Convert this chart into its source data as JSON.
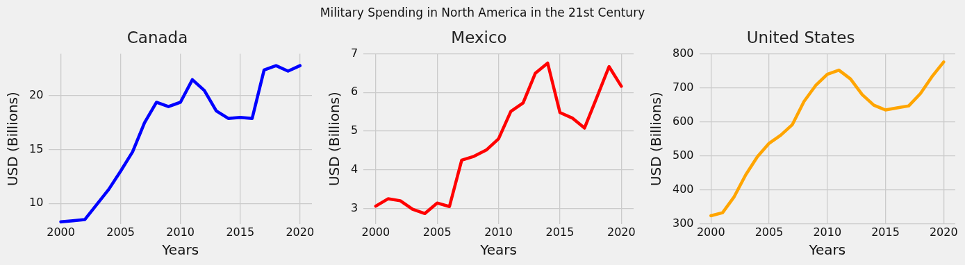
{
  "chart_data": [
    {
      "type": "line",
      "title": "Canada",
      "xlabel": "Years",
      "ylabel": "USD (Billions)",
      "annotations": [
        "Military Spending in North America in the 21st Century"
      ],
      "color": "#0000ff",
      "x": [
        2000,
        2001,
        2002,
        2003,
        2004,
        2005,
        2006,
        2007,
        2008,
        2009,
        2010,
        2011,
        2012,
        2013,
        2014,
        2015,
        2016,
        2017,
        2018,
        2019,
        2020
      ],
      "values": [
        8.3,
        8.4,
        8.5,
        9.9,
        11.3,
        13.0,
        14.8,
        17.5,
        19.4,
        19.0,
        19.4,
        21.5,
        20.5,
        18.6,
        17.9,
        18.0,
        17.9,
        22.4,
        22.8,
        22.3,
        22.8
      ],
      "xlim": [
        1999,
        2021
      ],
      "xticks": [
        2000,
        2005,
        2010,
        2015,
        2020
      ],
      "ylim": [
        8.1,
        23.9
      ],
      "yticks": [
        10,
        15,
        20
      ],
      "grid": true,
      "marker": "none",
      "line_style": "solid",
      "legend": false
    },
    {
      "type": "line",
      "title": "Mexico",
      "xlabel": "Years",
      "ylabel": "USD (Billions)",
      "color": "#ff0000",
      "x": [
        2000,
        2001,
        2002,
        2003,
        2004,
        2005,
        2006,
        2007,
        2008,
        2009,
        2010,
        2011,
        2012,
        2013,
        2014,
        2015,
        2016,
        2017,
        2018,
        2019,
        2020
      ],
      "values": [
        3.06,
        3.25,
        3.2,
        2.98,
        2.87,
        3.14,
        3.05,
        4.25,
        4.35,
        4.51,
        4.8,
        5.51,
        5.73,
        6.5,
        6.76,
        5.48,
        5.34,
        5.08,
        5.87,
        6.67,
        6.16
      ],
      "xlim": [
        1999,
        2021
      ],
      "xticks": [
        2000,
        2005,
        2010,
        2015,
        2020
      ],
      "ylim": [
        2.6,
        7
      ],
      "yticks": [
        3,
        4,
        5,
        6,
        7
      ],
      "grid": true,
      "marker": "none",
      "line_style": "solid",
      "legend": false
    },
    {
      "type": "line",
      "title": "United States",
      "xlabel": "Years",
      "ylabel": "USD (Billions)",
      "color": "#ffa500",
      "x": [
        2000,
        2001,
        2002,
        2003,
        2004,
        2005,
        2006,
        2007,
        2008,
        2009,
        2010,
        2011,
        2012,
        2013,
        2014,
        2015,
        2016,
        2017,
        2018,
        2019,
        2020
      ],
      "values": [
        324,
        333,
        380,
        445,
        498,
        537,
        561,
        592,
        660,
        707,
        740,
        752,
        726,
        680,
        649,
        635,
        641,
        647,
        683,
        733,
        776
      ],
      "xlim": [
        1999,
        2021
      ],
      "xticks": [
        2000,
        2005,
        2010,
        2015,
        2020
      ],
      "ylim": [
        300,
        800
      ],
      "yticks": [
        300,
        400,
        500,
        600,
        700,
        800
      ],
      "grid": true,
      "marker": "none",
      "line_style": "solid",
      "legend": false
    }
  ]
}
